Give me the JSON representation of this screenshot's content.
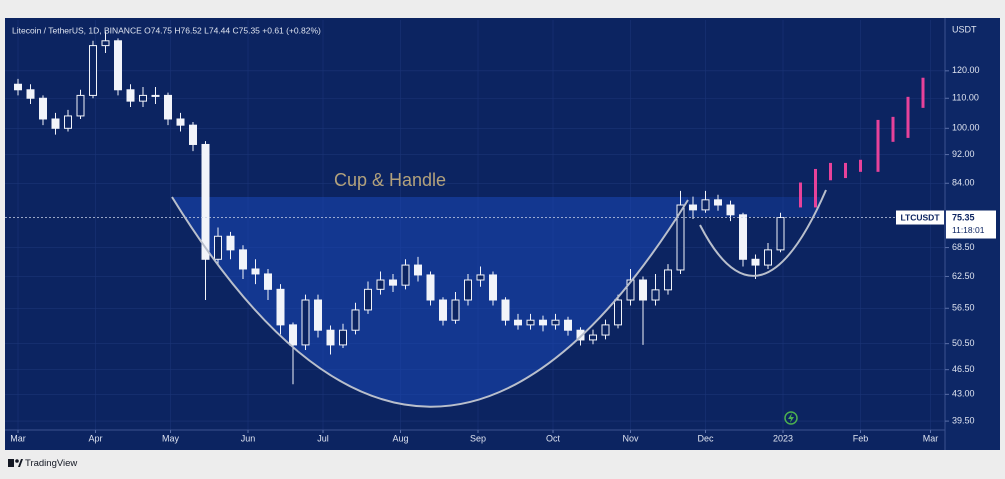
{
  "chart_data": {
    "type": "candlestick",
    "title": "Litecoin / TetherUS, 1D, BINANCE  O74.75  H76.52  L74.44  C75.35  +0.61 (+0.82%)",
    "y_unit": "USDT",
    "annotation": "Cup & Handle",
    "symbol_label": "LTCUSDT",
    "last_price": 75.35,
    "countdown": "11:18:01",
    "color": "#f2f4fa",
    "x": [
      0,
      5,
      10,
      15,
      20,
      25,
      30,
      35,
      40,
      45,
      50,
      55,
      60,
      65,
      70,
      75,
      80,
      85,
      90,
      95,
      100,
      105,
      110,
      115,
      120,
      125,
      130,
      135,
      140,
      145,
      150,
      155,
      160,
      165,
      170,
      175,
      180,
      185,
      190,
      195,
      200,
      205,
      210,
      215,
      220,
      225,
      230,
      235,
      240,
      245,
      250,
      255,
      260,
      265,
      270,
      275,
      280,
      285,
      290,
      295,
      300,
      305
    ],
    "open": [
      115,
      113,
      110,
      103,
      100,
      104,
      111,
      130,
      132,
      113,
      109,
      111,
      111,
      103,
      101,
      95,
      66,
      71,
      68,
      64,
      63,
      60,
      53.6,
      50.3,
      58,
      52.7,
      50.3,
      52.7,
      56.2,
      60,
      61.8,
      60.8,
      64.8,
      62.8,
      58,
      54.4,
      58,
      61.8,
      62.8,
      58,
      54.4,
      53.6,
      54.4,
      53.6,
      54.4,
      52.7,
      51.1,
      51.9,
      53.6,
      58,
      61.8,
      58,
      59.9,
      63.8,
      78.4,
      77.2,
      79.7,
      78.4,
      76,
      66,
      64.8,
      68
    ],
    "high": [
      117,
      115,
      111,
      105,
      106,
      113,
      132,
      136,
      133,
      115,
      114,
      114,
      112,
      105,
      102,
      96,
      73,
      72,
      69,
      66,
      64,
      61,
      54,
      59,
      59,
      53.5,
      53.8,
      57.5,
      61.5,
      63.5,
      63,
      66,
      66.5,
      63.5,
      58.5,
      59.5,
      63,
      64.5,
      63.5,
      58.5,
      55.5,
      55.5,
      55.2,
      55.5,
      55,
      53.2,
      52.8,
      54.5,
      59,
      64,
      62.5,
      63,
      65,
      82,
      80.5,
      82,
      81,
      79.5,
      76.5,
      67,
      69.5,
      76.5
    ],
    "low": [
      111,
      108,
      101,
      98,
      99,
      103,
      110,
      127,
      111,
      107,
      107,
      108,
      101,
      99,
      93,
      58,
      65,
      66,
      62,
      61,
      58,
      52,
      44.4,
      49.5,
      51.5,
      48.8,
      49.8,
      52,
      55.5,
      59,
      59.5,
      60,
      61.5,
      57,
      53.5,
      53.8,
      57,
      60.5,
      57,
      53.5,
      52.8,
      52.8,
      52.5,
      52.8,
      51.8,
      50.2,
      50.4,
      51.2,
      53,
      57,
      50.3,
      57,
      59,
      63,
      75,
      76.5,
      77,
      74.5,
      64.5,
      62,
      64,
      67.5
    ],
    "close": [
      113,
      110,
      103,
      100,
      104,
      111,
      130,
      132,
      113,
      109,
      111,
      111,
      103,
      101,
      95,
      66,
      71,
      68,
      64,
      63,
      60,
      53.6,
      50.3,
      58,
      52.7,
      50.3,
      52.7,
      56.2,
      60,
      61.8,
      60.8,
      64.8,
      62.8,
      58,
      54.4,
      58,
      61.8,
      62.8,
      58,
      54.4,
      53.6,
      54.4,
      53.6,
      54.4,
      52.7,
      51.1,
      51.9,
      53.6,
      58,
      61.8,
      58,
      59.9,
      63.8,
      78.4,
      77.2,
      79.7,
      78.4,
      76,
      66,
      64.8,
      68,
      75.35
    ],
    "projection": {
      "color": "#e8429a",
      "x": [
        313,
        319,
        325,
        331,
        337,
        344,
        350,
        356,
        362
      ],
      "low": [
        77.8,
        77.8,
        84.8,
        85.4,
        87.1,
        87.1,
        95.8,
        97.0,
        106.7
      ],
      "high": [
        84.2,
        87.9,
        89.6,
        89.6,
        90.5,
        102.7,
        103.7,
        110.5,
        117.4
      ]
    },
    "xlim": [
      -5.2,
      370.8
    ],
    "xticks": [
      {
        "value": 0,
        "label": "Mar"
      },
      {
        "value": 31,
        "label": "Apr"
      },
      {
        "value": 61,
        "label": "May"
      },
      {
        "value": 92,
        "label": "Jun"
      },
      {
        "value": 122,
        "label": "Jul"
      },
      {
        "value": 153,
        "label": "Aug"
      },
      {
        "value": 184,
        "label": "Sep"
      },
      {
        "value": 214,
        "label": "Oct"
      },
      {
        "value": 245,
        "label": "Nov"
      },
      {
        "value": 275,
        "label": "Dec"
      },
      {
        "value": 306,
        "label": "2023"
      },
      {
        "value": 337,
        "label": "Feb"
      },
      {
        "value": 365,
        "label": "Mar"
      }
    ],
    "ylim": [
      38.4,
      141
    ],
    "yticks": [
      {
        "value": 39.5,
        "label": "39.50"
      },
      {
        "value": 43,
        "label": "43.00"
      },
      {
        "value": 46.5,
        "label": "46.50"
      },
      {
        "value": 50.5,
        "label": "50.50"
      },
      {
        "value": 56.5,
        "label": "56.50"
      },
      {
        "value": 62.5,
        "label": "62.50"
      },
      {
        "value": 68.5,
        "label": "68.50"
      },
      {
        "value": 84,
        "label": "84.00"
      },
      {
        "value": 92,
        "label": "92.00"
      },
      {
        "value": 100,
        "label": "100.00"
      },
      {
        "value": 110,
        "label": "110.00"
      },
      {
        "value": 120,
        "label": "120.00"
      }
    ],
    "log_scale": true,
    "grid": true
  },
  "footer": {
    "brand": "TradingView"
  }
}
